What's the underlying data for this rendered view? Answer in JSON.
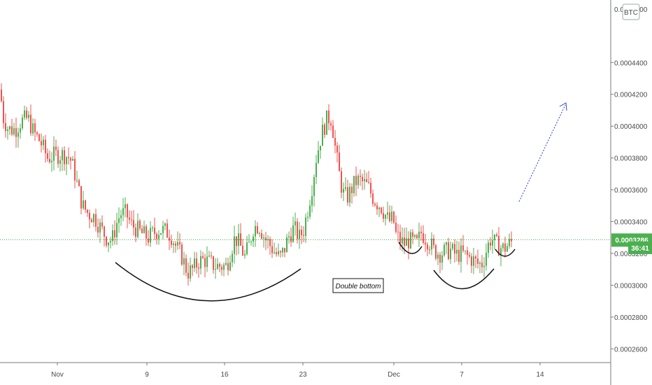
{
  "chart_data": {
    "type": "candlestick",
    "currency_label": "BTC",
    "y_ticks": [
      "0.0004400",
      "0.0004200",
      "0.0004000",
      "0.0003800",
      "0.0003600",
      "0.0003400",
      "0.0003200",
      "0.0003000",
      "0.0002800",
      "0.0002600"
    ],
    "top_tick_partial": "0.0004600",
    "x_ticks": [
      "Nov",
      "9",
      "16",
      "23",
      "Dec",
      "7",
      "14"
    ],
    "ylim": [
      0.000254,
      0.000474
    ],
    "last_price": "0.0003286",
    "countdown": "36:41",
    "annotation": "Double bottom",
    "colors": {
      "up": "#26a69a",
      "up_line": "#4caf50",
      "down": "#ef5350",
      "last_price_bg": "#4caf50",
      "arrow": "#2a3fd6"
    },
    "price_path": [
      [
        0,
        0.000423
      ],
      [
        5,
        0.000405
      ],
      [
        12,
        0.000398
      ],
      [
        22,
        0.000398
      ],
      [
        30,
        0.000403
      ],
      [
        40,
        0.000405
      ],
      [
        48,
        0.000396
      ],
      [
        58,
        0.00039
      ],
      [
        68,
        0.00038
      ],
      [
        80,
        0.000382
      ],
      [
        92,
        0.000382
      ],
      [
        100,
        0.00038
      ],
      [
        106,
        0.000372
      ],
      [
        112,
        0.00036
      ],
      [
        118,
        0.00035
      ],
      [
        126,
        0.000345
      ],
      [
        135,
        0.000343
      ],
      [
        145,
        0.000335
      ],
      [
        152,
        0.00033
      ],
      [
        160,
        0.000328
      ],
      [
        166,
        0.000338
      ],
      [
        172,
        0.000345
      ],
      [
        180,
        0.000345
      ],
      [
        188,
        0.000338
      ],
      [
        196,
        0.000335
      ],
      [
        204,
        0.000332
      ],
      [
        212,
        0.00033
      ],
      [
        220,
        0.000333
      ],
      [
        228,
        0.000335
      ],
      [
        236,
        0.000334
      ],
      [
        244,
        0.000332
      ],
      [
        252,
        0.000324
      ],
      [
        260,
        0.000318
      ],
      [
        268,
        0.000308
      ],
      [
        276,
        0.00031
      ],
      [
        284,
        0.000315
      ],
      [
        292,
        0.000316
      ],
      [
        300,
        0.000314
      ],
      [
        308,
        0.000312
      ],
      [
        316,
        0.000312
      ],
      [
        324,
        0.000312
      ],
      [
        330,
        0.000322
      ],
      [
        336,
        0.00033
      ],
      [
        342,
        0.000326
      ],
      [
        350,
        0.000318
      ],
      [
        356,
        0.000325
      ],
      [
        362,
        0.000336
      ],
      [
        370,
        0.000338
      ],
      [
        378,
        0.00033
      ],
      [
        386,
        0.000325
      ],
      [
        394,
        0.00032
      ],
      [
        400,
        0.000317
      ],
      [
        406,
        0.000322
      ],
      [
        412,
        0.00033
      ],
      [
        420,
        0.000336
      ],
      [
        428,
        0.00033
      ],
      [
        434,
        0.000335
      ],
      [
        440,
        0.000348
      ],
      [
        446,
        0.000362
      ],
      [
        452,
        0.00038
      ],
      [
        458,
        0.000392
      ],
      [
        462,
        0.000398
      ],
      [
        468,
        0.000405
      ],
      [
        474,
        0.000405
      ],
      [
        478,
        0.00039
      ],
      [
        484,
        0.000372
      ],
      [
        490,
        0.000358
      ],
      [
        496,
        0.000355
      ],
      [
        502,
        0.00036
      ],
      [
        508,
        0.000365
      ],
      [
        514,
        0.000366
      ],
      [
        520,
        0.000364
      ],
      [
        526,
        0.000362
      ],
      [
        532,
        0.000356
      ],
      [
        538,
        0.000352
      ],
      [
        544,
        0.00035
      ],
      [
        550,
        0.000345
      ],
      [
        556,
        0.00034
      ],
      [
        562,
        0.000342
      ],
      [
        566,
        0.000332
      ],
      [
        572,
        0.000328
      ],
      [
        578,
        0.000326
      ],
      [
        584,
        0.000328
      ],
      [
        590,
        0.000327
      ],
      [
        596,
        0.000326
      ],
      [
        602,
        0.000333
      ],
      [
        608,
        0.00033
      ],
      [
        614,
        0.000327
      ],
      [
        620,
        0.000322
      ],
      [
        628,
        0.00032
      ],
      [
        636,
        0.000321
      ],
      [
        644,
        0.000322
      ],
      [
        652,
        0.000319
      ],
      [
        660,
        0.00032
      ],
      [
        668,
        0.000318
      ],
      [
        676,
        0.000316
      ],
      [
        684,
        0.000313
      ],
      [
        690,
        0.000314
      ],
      [
        696,
        0.000323
      ],
      [
        702,
        0.00033
      ],
      [
        708,
        0.000326
      ],
      [
        714,
        0.000324
      ],
      [
        720,
        0.000323
      ],
      [
        726,
        0.000325
      ],
      [
        733,
        0.000328
      ]
    ]
  }
}
